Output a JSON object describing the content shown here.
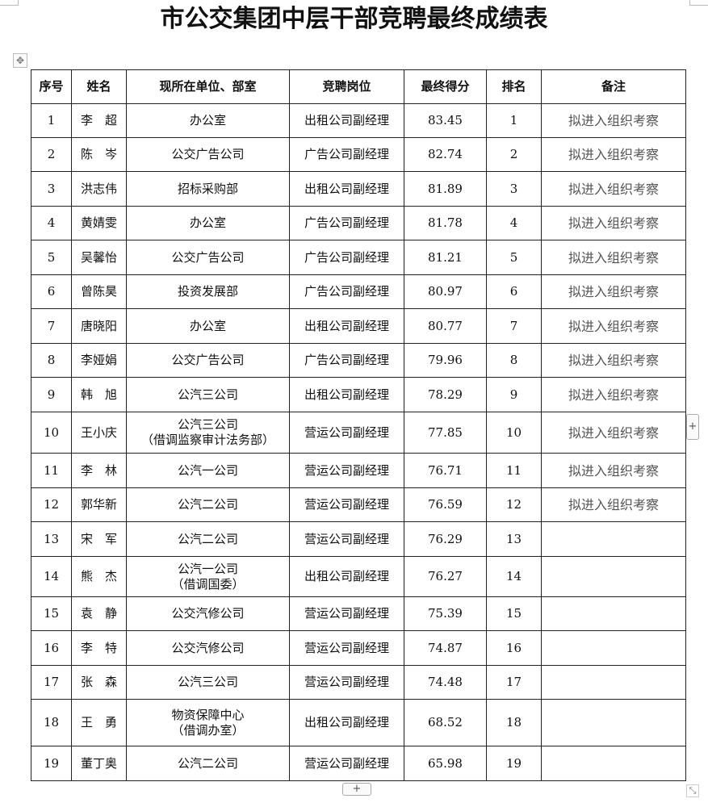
{
  "title": "市公交集团中层干部竞聘最终成绩表",
  "headers": [
    "序号",
    "姓名",
    "现所在单位、部室",
    "竞聘岗位",
    "最终得分",
    "排名",
    "备注"
  ],
  "rows": [
    {
      "no": "1",
      "name": "李　超",
      "unit": "办公室",
      "unit2": "",
      "post": "出租公司副经理",
      "score": "83.45",
      "rank": "1",
      "remark": "拟进入组织考察"
    },
    {
      "no": "2",
      "name": "陈　岑",
      "unit": "公交广告公司",
      "unit2": "",
      "post": "广告公司副经理",
      "score": "82.74",
      "rank": "2",
      "remark": "拟进入组织考察"
    },
    {
      "no": "3",
      "name": "洪志伟",
      "unit": "招标采购部",
      "unit2": "",
      "post": "出租公司副经理",
      "score": "81.89",
      "rank": "3",
      "remark": "拟进入组织考察"
    },
    {
      "no": "4",
      "name": "黄婧雯",
      "unit": "办公室",
      "unit2": "",
      "post": "广告公司副经理",
      "score": "81.78",
      "rank": "4",
      "remark": "拟进入组织考察"
    },
    {
      "no": "5",
      "name": "吴馨怡",
      "unit": "公交广告公司",
      "unit2": "",
      "post": "广告公司副经理",
      "score": "81.21",
      "rank": "5",
      "remark": "拟进入组织考察"
    },
    {
      "no": "6",
      "name": "曾陈昊",
      "unit": "投资发展部",
      "unit2": "",
      "post": "广告公司副经理",
      "score": "80.97",
      "rank": "6",
      "remark": "拟进入组织考察"
    },
    {
      "no": "7",
      "name": "唐晓阳",
      "unit": "办公室",
      "unit2": "",
      "post": "出租公司副经理",
      "score": "80.77",
      "rank": "7",
      "remark": "拟进入组织考察"
    },
    {
      "no": "8",
      "name": "李娅娟",
      "unit": "公交广告公司",
      "unit2": "",
      "post": "广告公司副经理",
      "score": "79.96",
      "rank": "8",
      "remark": "拟进入组织考察"
    },
    {
      "no": "9",
      "name": "韩　旭",
      "unit": "公汽三公司",
      "unit2": "",
      "post": "出租公司副经理",
      "score": "78.29",
      "rank": "9",
      "remark": "拟进入组织考察"
    },
    {
      "no": "10",
      "name": "王小庆",
      "unit": "公汽三公司",
      "unit2": "（借调监察审计法务部）",
      "post": "营运公司副经理",
      "score": "77.85",
      "rank": "10",
      "remark": "拟进入组织考察"
    },
    {
      "no": "11",
      "name": "李　林",
      "unit": "公汽一公司",
      "unit2": "",
      "post": "营运公司副经理",
      "score": "76.71",
      "rank": "11",
      "remark": "拟进入组织考察"
    },
    {
      "no": "12",
      "name": "郭华新",
      "unit": "公汽二公司",
      "unit2": "",
      "post": "营运公司副经理",
      "score": "76.59",
      "rank": "12",
      "remark": "拟进入组织考察"
    },
    {
      "no": "13",
      "name": "宋　军",
      "unit": "公汽二公司",
      "unit2": "",
      "post": "营运公司副经理",
      "score": "76.29",
      "rank": "13",
      "remark": ""
    },
    {
      "no": "14",
      "name": "熊　杰",
      "unit": "公汽一公司",
      "unit2": "（借调国委）",
      "post": "出租公司副经理",
      "score": "76.27",
      "rank": "14",
      "remark": ""
    },
    {
      "no": "15",
      "name": "袁　静",
      "unit": "公交汽修公司",
      "unit2": "",
      "post": "营运公司副经理",
      "score": "75.39",
      "rank": "15",
      "remark": ""
    },
    {
      "no": "16",
      "name": "李　特",
      "unit": "公交汽修公司",
      "unit2": "",
      "post": "营运公司副经理",
      "score": "74.87",
      "rank": "16",
      "remark": ""
    },
    {
      "no": "17",
      "name": "张　森",
      "unit": "公汽三公司",
      "unit2": "",
      "post": "营运公司副经理",
      "score": "74.48",
      "rank": "17",
      "remark": ""
    },
    {
      "no": "18",
      "name": "王　勇",
      "unit": "物资保障中心",
      "unit2": "（借调办室）",
      "post": "出租公司副经理",
      "score": "68.52",
      "rank": "18",
      "remark": ""
    },
    {
      "no": "19",
      "name": "董丁奥",
      "unit": "公汽二公司",
      "unit2": "",
      "post": "营运公司副经理",
      "score": "65.98",
      "rank": "19",
      "remark": ""
    }
  ],
  "controls": {
    "add_column": "+",
    "add_row": "+",
    "move_handle": "✥",
    "resize_handle": "⤡"
  }
}
